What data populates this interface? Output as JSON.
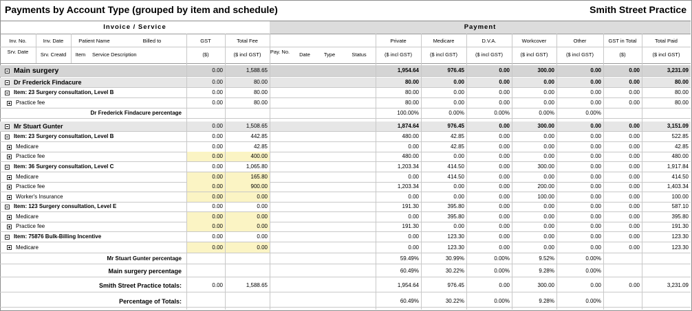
{
  "header": {
    "title": "Payments by Account Type (grouped by item and schedule)",
    "practice": "Smith Street Practice",
    "group_invoice": "Invoice / Service",
    "group_payment": "Payment"
  },
  "columns_row1": {
    "inv_no": "Inv. No.",
    "inv_date": "Inv. Date",
    "patient_name": "Patient Name",
    "billed_to": "Billed to",
    "gst": "GST",
    "total_fee": "Total Fee",
    "private": "Private",
    "medicare": "Medicare",
    "dva": "D.V.A.",
    "workcover": "Workcover",
    "other": "Other",
    "gst_in_total": "GST in Total",
    "total_paid": "Total Paid"
  },
  "columns_row2": {
    "srv_date": "Srv. Date",
    "srv_created": "Srv. Creatd",
    "item": "Item",
    "service_desc": "Service Description",
    "gst_unit": "($)",
    "fee_unit": "($ incl GST)",
    "pay_no": "Pay. No.",
    "date": "Date",
    "type": "Type",
    "status": "Status",
    "private_unit": "($ incl GST)",
    "medicare_unit": "($ incl GST)",
    "dva_unit": "($ incl GST)",
    "workcover_unit": "($ incl GST)",
    "other_unit": "($ incl GST)",
    "gstin_unit": "($)",
    "paid_unit": "($ incl GST)"
  },
  "rows": [
    {
      "kind": "main",
      "label": "Main surgery",
      "vals": [
        "0.00",
        "1,588.65",
        "1,954.64",
        "976.45",
        "0.00",
        "300.00",
        "0.00",
        "0.00",
        "3,231.09"
      ]
    },
    {
      "kind": "provider",
      "label": "Dr Frederick Findacure",
      "vals": [
        "0.00",
        "80.00",
        "80.00",
        "0.00",
        "0.00",
        "0.00",
        "0.00",
        "0.00",
        "80.00"
      ]
    },
    {
      "kind": "item",
      "label": "Item: 23 Surgery consultation, Level B",
      "vals": [
        "0.00",
        "80.00",
        "80.00",
        "0.00",
        "0.00",
        "0.00",
        "0.00",
        "0.00",
        "80.00"
      ]
    },
    {
      "kind": "sub",
      "label": "Practice fee",
      "vals": [
        "0.00",
        "80.00",
        "80.00",
        "0.00",
        "0.00",
        "0.00",
        "0.00",
        "0.00",
        "80.00"
      ]
    },
    {
      "kind": "pct",
      "label": "Dr Frederick Findacure percentage",
      "vals": [
        "",
        "",
        "100.00%",
        "0.00%",
        "0.00%",
        "0.00%",
        "0.00%",
        "",
        ""
      ]
    },
    {
      "kind": "provider",
      "label": "Mr Stuart Gunter",
      "vals": [
        "0.00",
        "1,508.65",
        "1,874.64",
        "976.45",
        "0.00",
        "300.00",
        "0.00",
        "0.00",
        "3,151.09"
      ]
    },
    {
      "kind": "item",
      "label": "Item: 23 Surgery consultation, Level B",
      "vals": [
        "0.00",
        "442.85",
        "480.00",
        "42.85",
        "0.00",
        "0.00",
        "0.00",
        "0.00",
        "522.85"
      ]
    },
    {
      "kind": "sub",
      "label": "Medicare",
      "vals": [
        "0.00",
        "42.85",
        "0.00",
        "42.85",
        "0.00",
        "0.00",
        "0.00",
        "0.00",
        "42.85"
      ]
    },
    {
      "kind": "sub",
      "label": "Practice fee",
      "yellow": true,
      "vals": [
        "0.00",
        "400.00",
        "480.00",
        "0.00",
        "0.00",
        "0.00",
        "0.00",
        "0.00",
        "480.00"
      ]
    },
    {
      "kind": "item",
      "label": "Item: 36 Surgery consultation, Level C",
      "vals": [
        "0.00",
        "1,065.80",
        "1,203.34",
        "414.50",
        "0.00",
        "300.00",
        "0.00",
        "0.00",
        "1,917.84"
      ]
    },
    {
      "kind": "sub",
      "label": "Medicare",
      "yellow": true,
      "vals": [
        "0.00",
        "165.80",
        "0.00",
        "414.50",
        "0.00",
        "0.00",
        "0.00",
        "0.00",
        "414.50"
      ]
    },
    {
      "kind": "sub",
      "label": "Practice fee",
      "yellow": true,
      "vals": [
        "0.00",
        "900.00",
        "1,203.34",
        "0.00",
        "0.00",
        "200.00",
        "0.00",
        "0.00",
        "1,403.34"
      ]
    },
    {
      "kind": "sub",
      "label": "Worker's Insurance",
      "yellow": true,
      "vals": [
        "0.00",
        "0.00",
        "0.00",
        "0.00",
        "0.00",
        "100.00",
        "0.00",
        "0.00",
        "100.00"
      ]
    },
    {
      "kind": "item",
      "label": "Item: 123 Surgery consultation, Level E",
      "vals": [
        "0.00",
        "0.00",
        "191.30",
        "395.80",
        "0.00",
        "0.00",
        "0.00",
        "0.00",
        "587.10"
      ]
    },
    {
      "kind": "sub",
      "label": "Medicare",
      "yellow": true,
      "vals": [
        "0.00",
        "0.00",
        "0.00",
        "395.80",
        "0.00",
        "0.00",
        "0.00",
        "0.00",
        "395.80"
      ]
    },
    {
      "kind": "sub",
      "label": "Practice fee",
      "yellow": true,
      "vals": [
        "0.00",
        "0.00",
        "191.30",
        "0.00",
        "0.00",
        "0.00",
        "0.00",
        "0.00",
        "191.30"
      ]
    },
    {
      "kind": "item",
      "label": "Item: 75876 Bulk-Billing Incentive",
      "vals": [
        "0.00",
        "0.00",
        "0.00",
        "123.30",
        "0.00",
        "0.00",
        "0.00",
        "0.00",
        "123.30"
      ]
    },
    {
      "kind": "sub",
      "label": "Medicare",
      "yellow": true,
      "vals": [
        "0.00",
        "0.00",
        "0.00",
        "123.30",
        "0.00",
        "0.00",
        "0.00",
        "0.00",
        "123.30"
      ]
    },
    {
      "kind": "pct",
      "label": "Mr Stuart Gunter percentage",
      "vals": [
        "",
        "",
        "59.49%",
        "30.99%",
        "0.00%",
        "9.52%",
        "0.00%",
        "",
        ""
      ]
    },
    {
      "kind": "pctmain",
      "label": "Main surgery percentage",
      "vals": [
        "",
        "",
        "60.49%",
        "30.22%",
        "0.00%",
        "9.28%",
        "0.00%",
        "",
        ""
      ]
    },
    {
      "kind": "total",
      "label": "Smith Street Practice totals:",
      "vals": [
        "0.00",
        "1,588.65",
        "1,954.64",
        "976.45",
        "0.00",
        "300.00",
        "0.00",
        "0.00",
        "3,231.09"
      ]
    },
    {
      "kind": "totalpct",
      "label": "Percentage of Totals:",
      "vals": [
        "",
        "",
        "60.49%",
        "30.22%",
        "0.00%",
        "9.28%",
        "0.00%",
        "",
        ""
      ]
    }
  ]
}
